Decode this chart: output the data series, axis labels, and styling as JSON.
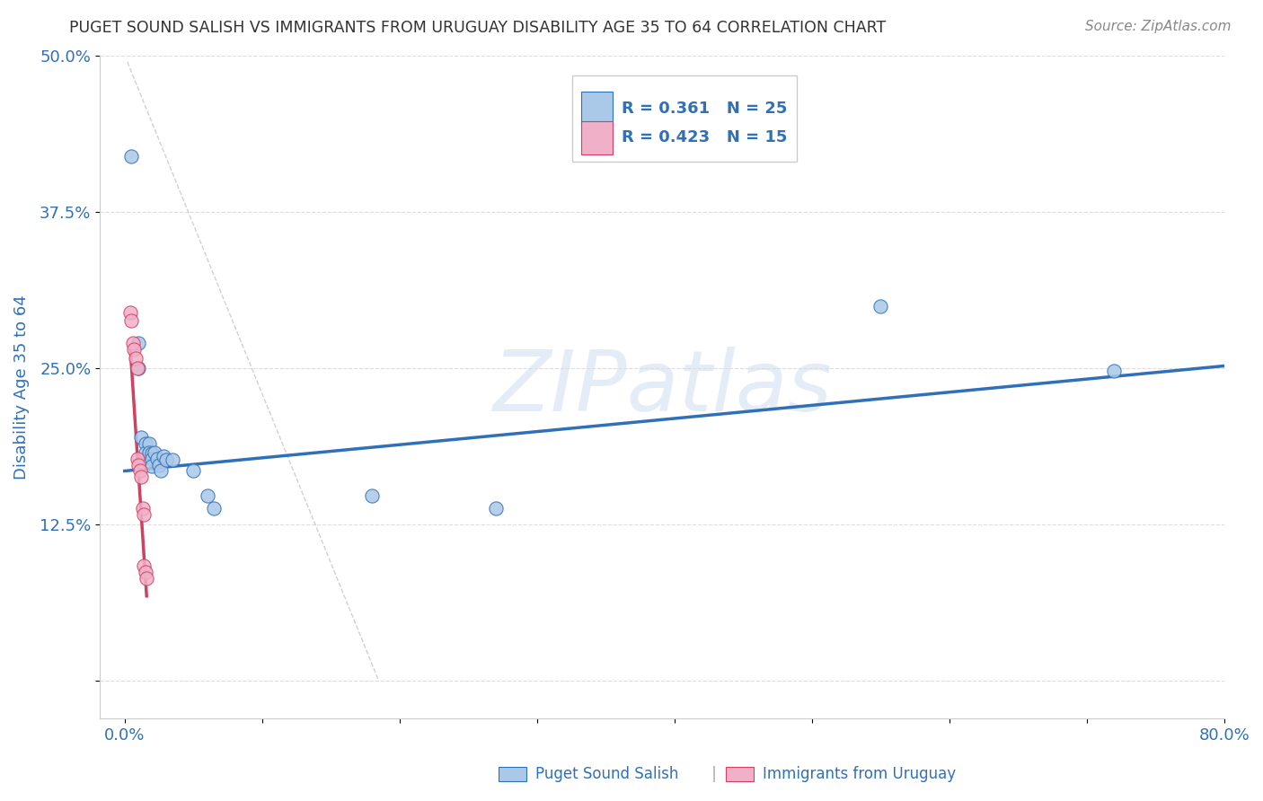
{
  "title": "PUGET SOUND SALISH VS IMMIGRANTS FROM URUGUAY DISABILITY AGE 35 TO 64 CORRELATION CHART",
  "source": "Source: ZipAtlas.com",
  "ylabel": "Disability Age 35 to 64",
  "xlim": [
    0.0,
    0.8
  ],
  "ylim": [
    0.0,
    0.5
  ],
  "yticks": [
    0.0,
    0.125,
    0.25,
    0.375,
    0.5
  ],
  "ytick_labels": [
    "",
    "12.5%",
    "25.0%",
    "37.5%",
    "50.0%"
  ],
  "xticks": [
    0.0,
    0.1,
    0.2,
    0.3,
    0.4,
    0.5,
    0.6,
    0.7,
    0.8
  ],
  "xtick_labels": [
    "0.0%",
    "",
    "",
    "",
    "",
    "",
    "",
    "",
    "80.0%"
  ],
  "blue_scatter": [
    [
      0.005,
      0.42
    ],
    [
      0.01,
      0.27
    ],
    [
      0.01,
      0.25
    ],
    [
      0.012,
      0.195
    ],
    [
      0.015,
      0.19
    ],
    [
      0.015,
      0.183
    ],
    [
      0.018,
      0.19
    ],
    [
      0.018,
      0.183
    ],
    [
      0.02,
      0.182
    ],
    [
      0.02,
      0.178
    ],
    [
      0.02,
      0.172
    ],
    [
      0.022,
      0.183
    ],
    [
      0.024,
      0.178
    ],
    [
      0.025,
      0.173
    ],
    [
      0.026,
      0.168
    ],
    [
      0.028,
      0.18
    ],
    [
      0.03,
      0.177
    ],
    [
      0.035,
      0.177
    ],
    [
      0.05,
      0.168
    ],
    [
      0.06,
      0.148
    ],
    [
      0.065,
      0.138
    ],
    [
      0.18,
      0.148
    ],
    [
      0.27,
      0.138
    ],
    [
      0.55,
      0.3
    ],
    [
      0.72,
      0.248
    ]
  ],
  "pink_scatter": [
    [
      0.004,
      0.295
    ],
    [
      0.005,
      0.288
    ],
    [
      0.006,
      0.27
    ],
    [
      0.007,
      0.265
    ],
    [
      0.008,
      0.258
    ],
    [
      0.009,
      0.25
    ],
    [
      0.009,
      0.178
    ],
    [
      0.01,
      0.173
    ],
    [
      0.011,
      0.168
    ],
    [
      0.012,
      0.163
    ],
    [
      0.013,
      0.138
    ],
    [
      0.014,
      0.133
    ],
    [
      0.014,
      0.092
    ],
    [
      0.015,
      0.087
    ],
    [
      0.016,
      0.082
    ]
  ],
  "blue_line_x": [
    0.0,
    0.8
  ],
  "blue_line_y_start": 0.168,
  "blue_line_y_end": 0.252,
  "pink_line_x_start": 0.004,
  "pink_line_x_end": 0.016,
  "pink_line_y_start": 0.268,
  "pink_line_y_end": 0.068,
  "R_blue": "0.361",
  "N_blue": "25",
  "R_pink": "0.423",
  "N_pink": "15",
  "blue_color": "#aac8e8",
  "blue_line_color": "#3070b8",
  "pink_color": "#f0b0c8",
  "pink_line_color": "#d04060",
  "diagonal_color": "#cccccc",
  "watermark_text": "ZIPatlas",
  "legend_label_blue": "Puget Sound Salish",
  "legend_label_pink": "Immigrants from Uruguay",
  "title_color": "#333333",
  "axis_label_color": "#3070b8",
  "background_color": "#ffffff",
  "grid_color": "#dddddd"
}
